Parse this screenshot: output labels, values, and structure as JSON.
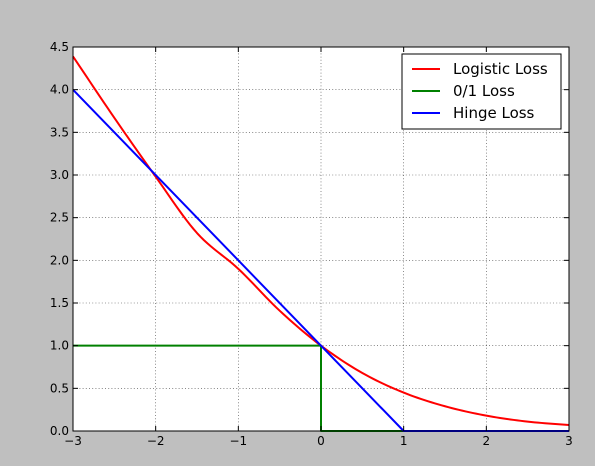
{
  "chart_data": {
    "type": "line",
    "title": "",
    "xlabel": "",
    "ylabel": "",
    "xlim": [
      -3,
      3
    ],
    "ylim": [
      0,
      4.5
    ],
    "grid": true,
    "legend_placement": "top-right",
    "xticks": [
      -3,
      -2,
      -1,
      0,
      1,
      2,
      3
    ],
    "xtick_labels": [
      "−3",
      "−2",
      "−1",
      "0",
      "1",
      "2",
      "3"
    ],
    "yticks": [
      0,
      0.5,
      1,
      1.5,
      2,
      2.5,
      3,
      3.5,
      4,
      4.5
    ],
    "ytick_labels": [
      "0.0",
      "0.5",
      "1.0",
      "1.5",
      "2.0",
      "2.5",
      "3.0",
      "3.5",
      "4.0",
      "4.5"
    ],
    "series": [
      {
        "name": "Logistic Loss",
        "color": "#ff0000",
        "x": [
          -3,
          -2.5,
          -2,
          -1.5,
          -1,
          -0.5,
          0,
          0.5,
          1,
          1.5,
          2,
          2.5,
          3
        ],
        "y": [
          4.39,
          3.67,
          2.98,
          2.32,
          1.9,
          1.41,
          1.0,
          0.68,
          0.45,
          0.29,
          0.18,
          0.11,
          0.07
        ]
      },
      {
        "name": "0/1 Loss",
        "color": "#008000",
        "x": [
          -3,
          0,
          0,
          3
        ],
        "y": [
          1,
          1,
          0,
          0
        ]
      },
      {
        "name": "Hinge Loss",
        "color": "#0000ff",
        "x": [
          -3,
          1,
          3
        ],
        "y": [
          4,
          0,
          0
        ]
      }
    ]
  }
}
